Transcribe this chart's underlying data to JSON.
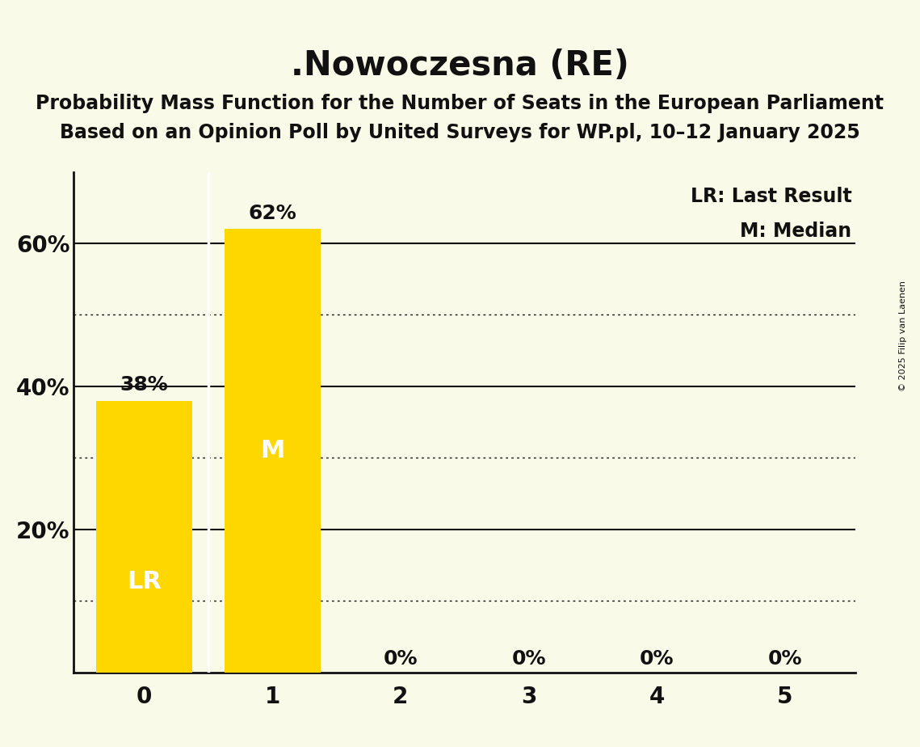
{
  "title": ".Nowoczesna (RE)",
  "subtitle1": "Probability Mass Function for the Number of Seats in the European Parliament",
  "subtitle2": "Based on an Opinion Poll by United Surveys for WP.pl, 10–12 January 2025",
  "copyright": "© 2025 Filip van Laenen",
  "categories": [
    0,
    1,
    2,
    3,
    4,
    5
  ],
  "values": [
    0.38,
    0.62,
    0.0,
    0.0,
    0.0,
    0.0
  ],
  "bar_color": "#FFD700",
  "background_color": "#FAFAE8",
  "text_color": "#111111",
  "white_line_color": "#FFFFFF",
  "lr_bar": 0,
  "median_bar": 1,
  "lr_label": "LR",
  "median_label": "M",
  "legend_lr": "LR: Last Result",
  "legend_m": "M: Median",
  "ylim": [
    0,
    0.7
  ],
  "solid_gridlines": [
    0.2,
    0.4,
    0.6
  ],
  "dotted_gridlines": [
    0.1,
    0.3,
    0.5
  ],
  "bar_width": 0.75,
  "title_fontsize": 30,
  "subtitle_fontsize": 17,
  "tick_fontsize": 20,
  "annotation_fontsize": 18,
  "legend_fontsize": 17,
  "bar_label_fontsize": 22
}
